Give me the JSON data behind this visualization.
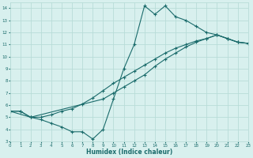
{
  "line1_x": [
    0,
    1,
    2,
    3,
    4,
    5,
    6,
    7,
    8,
    9,
    10,
    11,
    12,
    13,
    14,
    15,
    16,
    17,
    18,
    19,
    20,
    21,
    22,
    23
  ],
  "line1_y": [
    5.5,
    5.5,
    5.0,
    4.8,
    4.5,
    4.2,
    3.8,
    3.8,
    3.2,
    4.0,
    6.5,
    9.0,
    11.0,
    14.2,
    13.5,
    14.2,
    13.3,
    13.0,
    12.5,
    12.0,
    11.8,
    11.5,
    11.2,
    11.1
  ],
  "line2_x": [
    0,
    1,
    2,
    3,
    4,
    5,
    6,
    7,
    8,
    9,
    10,
    11,
    12,
    13,
    14,
    15,
    16,
    17,
    18,
    19,
    20,
    21,
    22,
    23
  ],
  "line2_y": [
    5.5,
    5.5,
    5.0,
    5.0,
    5.2,
    5.5,
    5.7,
    6.1,
    6.6,
    7.2,
    7.8,
    8.3,
    8.8,
    9.3,
    9.8,
    10.3,
    10.7,
    11.0,
    11.3,
    11.5,
    11.8,
    11.5,
    11.2,
    11.1
  ],
  "line3_x": [
    0,
    2,
    9,
    10,
    11,
    12,
    13,
    14,
    15,
    16,
    17,
    18,
    19,
    20,
    21,
    22,
    23
  ],
  "line3_y": [
    5.5,
    5.0,
    6.5,
    7.0,
    7.5,
    8.0,
    8.5,
    9.2,
    9.8,
    10.3,
    10.8,
    11.2,
    11.5,
    11.8,
    11.5,
    11.2,
    11.1
  ],
  "color": "#1a6b6b",
  "bg_color": "#d8f0ee",
  "grid_color": "#b8dcd8",
  "xlabel": "Humidex (Indice chaleur)",
  "xlim": [
    0,
    23
  ],
  "ylim": [
    3,
    14.5
  ],
  "xticks": [
    0,
    1,
    2,
    3,
    4,
    5,
    6,
    7,
    8,
    9,
    10,
    11,
    12,
    13,
    14,
    15,
    16,
    17,
    18,
    19,
    20,
    21,
    22,
    23
  ],
  "yticks": [
    3,
    4,
    5,
    6,
    7,
    8,
    9,
    10,
    11,
    12,
    13,
    14
  ]
}
